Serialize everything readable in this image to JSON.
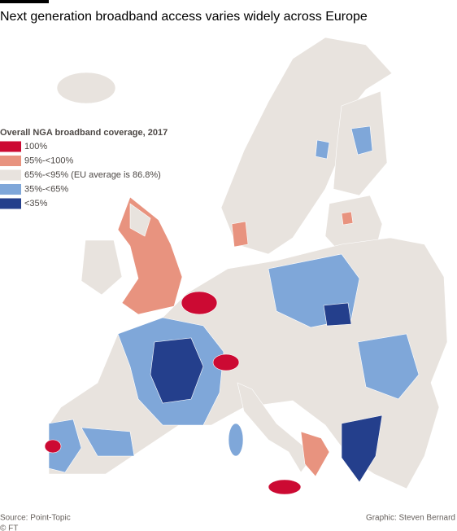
{
  "header": {
    "title": "Next generation broadband access varies widely across Europe"
  },
  "legend": {
    "title": "Overall NGA broadband coverage, 2017",
    "items": [
      {
        "label": "100%",
        "color": "#cc0a33"
      },
      {
        "label": "95%-<100%",
        "color": "#e8937f"
      },
      {
        "label": "65%-<95% (EU average is 86.8%)",
        "color": "#e8e3de"
      },
      {
        "label": "35%-<65%",
        "color": "#7fa7d9"
      },
      {
        "label": "<35%",
        "color": "#243f8c"
      }
    ]
  },
  "footer": {
    "source": "Source: Point-Topic",
    "copyright": "© FT",
    "credit": "Graphic: Steven Bernard"
  }
}
